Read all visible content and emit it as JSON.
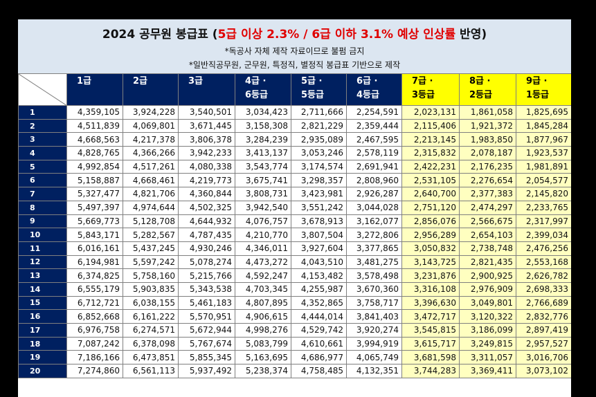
{
  "title": {
    "prefix": "2024 공무원 봉급표 (",
    "red": "5급 이상 2.3% / 6급 이하 3.1% 예상 인상률",
    "suffix": " 반영)"
  },
  "notes": [
    "*독공사 자체 제작 자료이므로 불펌 금지",
    "*일반직공무원, 군무원, 특정직, 별정직 봉급표 기반으로 제작"
  ],
  "columns": [
    {
      "line1": "1급",
      "line2": ""
    },
    {
      "line1": "2급",
      "line2": ""
    },
    {
      "line1": "3급",
      "line2": ""
    },
    {
      "line1": "4급 ·",
      "line2": "6등급"
    },
    {
      "line1": "5급 ·",
      "line2": "5등급"
    },
    {
      "line1": "6급 ·",
      "line2": "4등급"
    },
    {
      "line1": "7급 ·",
      "line2": "3등급"
    },
    {
      "line1": "8급 ·",
      "line2": "2등급"
    },
    {
      "line1": "9급 ·",
      "line2": "1등급"
    }
  ],
  "rows": [
    {
      "step": "1",
      "values": [
        "4,359,105",
        "3,924,228",
        "3,540,501",
        "3,034,423",
        "2,711,666",
        "2,254,591",
        "2,023,131",
        "1,861,058",
        "1,825,695"
      ]
    },
    {
      "step": "2",
      "values": [
        "4,511,839",
        "4,069,801",
        "3,671,445",
        "3,158,308",
        "2,821,229",
        "2,359,444",
        "2,115,406",
        "1,921,372",
        "1,845,284"
      ]
    },
    {
      "step": "3",
      "values": [
        "4,668,563",
        "4,217,378",
        "3,806,378",
        "3,284,239",
        "2,935,089",
        "2,467,595",
        "2,213,145",
        "1,983,850",
        "1,877,967"
      ]
    },
    {
      "step": "4",
      "values": [
        "4,828,765",
        "4,366,266",
        "3,942,233",
        "3,413,137",
        "3,053,246",
        "2,578,119",
        "2,315,832",
        "2,078,187",
        "1,923,537"
      ]
    },
    {
      "step": "5",
      "values": [
        "4,992,854",
        "4,517,261",
        "4,080,338",
        "3,543,774",
        "3,174,574",
        "2,691,941",
        "2,422,231",
        "2,176,235",
        "1,981,891"
      ]
    },
    {
      "step": "6",
      "values": [
        "5,158,887",
        "4,668,461",
        "4,219,773",
        "3,675,741",
        "3,298,357",
        "2,808,960",
        "2,531,105",
        "2,276,654",
        "2,054,577"
      ]
    },
    {
      "step": "7",
      "values": [
        "5,327,477",
        "4,821,706",
        "4,360,844",
        "3,808,731",
        "3,423,981",
        "2,926,287",
        "2,640,700",
        "2,377,383",
        "2,145,820"
      ]
    },
    {
      "step": "8",
      "values": [
        "5,497,397",
        "4,974,644",
        "4,502,325",
        "3,942,540",
        "3,551,242",
        "3,044,028",
        "2,751,120",
        "2,474,297",
        "2,233,765"
      ]
    },
    {
      "step": "9",
      "values": [
        "5,669,773",
        "5,128,708",
        "4,644,932",
        "4,076,757",
        "3,678,913",
        "3,162,077",
        "2,856,076",
        "2,566,675",
        "2,317,997"
      ]
    },
    {
      "step": "10",
      "values": [
        "5,843,171",
        "5,282,567",
        "4,787,435",
        "4,210,770",
        "3,807,504",
        "3,272,806",
        "2,956,289",
        "2,654,103",
        "2,399,034"
      ]
    },
    {
      "step": "11",
      "values": [
        "6,016,161",
        "5,437,245",
        "4,930,246",
        "4,346,011",
        "3,927,604",
        "3,377,865",
        "3,050,832",
        "2,738,748",
        "2,476,256"
      ]
    },
    {
      "step": "12",
      "values": [
        "6,194,981",
        "5,597,242",
        "5,078,274",
        "4,473,272",
        "4,043,510",
        "3,481,275",
        "3,143,725",
        "2,821,435",
        "2,553,168"
      ]
    },
    {
      "step": "13",
      "values": [
        "6,374,825",
        "5,758,160",
        "5,215,766",
        "4,592,247",
        "4,153,482",
        "3,578,498",
        "3,231,876",
        "2,900,925",
        "2,626,782"
      ]
    },
    {
      "step": "14",
      "values": [
        "6,555,179",
        "5,903,835",
        "5,343,538",
        "4,703,345",
        "4,255,987",
        "3,670,360",
        "3,316,108",
        "2,976,909",
        "2,698,333"
      ]
    },
    {
      "step": "15",
      "values": [
        "6,712,721",
        "6,038,155",
        "5,461,183",
        "4,807,895",
        "4,352,865",
        "3,758,717",
        "3,396,630",
        "3,049,801",
        "2,766,689"
      ]
    },
    {
      "step": "16",
      "values": [
        "6,852,668",
        "6,161,222",
        "5,570,951",
        "4,906,615",
        "4,444,014",
        "3,841,403",
        "3,472,717",
        "3,120,322",
        "2,832,776"
      ]
    },
    {
      "step": "17",
      "values": [
        "6,976,758",
        "6,274,571",
        "5,672,944",
        "4,998,276",
        "4,529,742",
        "3,920,274",
        "3,545,815",
        "3,186,099",
        "2,897,419"
      ]
    },
    {
      "step": "18",
      "values": [
        "7,087,242",
        "6,378,098",
        "5,767,674",
        "5,083,799",
        "4,610,661",
        "3,994,919",
        "3,615,717",
        "3,249,815",
        "2,957,527"
      ]
    },
    {
      "step": "19",
      "values": [
        "7,186,166",
        "6,473,851",
        "5,855,345",
        "5,163,695",
        "4,686,977",
        "4,065,749",
        "3,681,598",
        "3,311,057",
        "3,016,706"
      ]
    },
    {
      "step": "20",
      "values": [
        "7,274,860",
        "6,561,113",
        "5,937,492",
        "5,238,374",
        "4,758,485",
        "4,132,351",
        "3,744,283",
        "3,369,411",
        "3,073,102"
      ]
    }
  ],
  "colors": {
    "header_bg": "#dce6f1",
    "navy": "#002060",
    "highlight_header": "#ffff00",
    "highlight_cell": "#ffffc0",
    "title_red": "#e00000"
  }
}
